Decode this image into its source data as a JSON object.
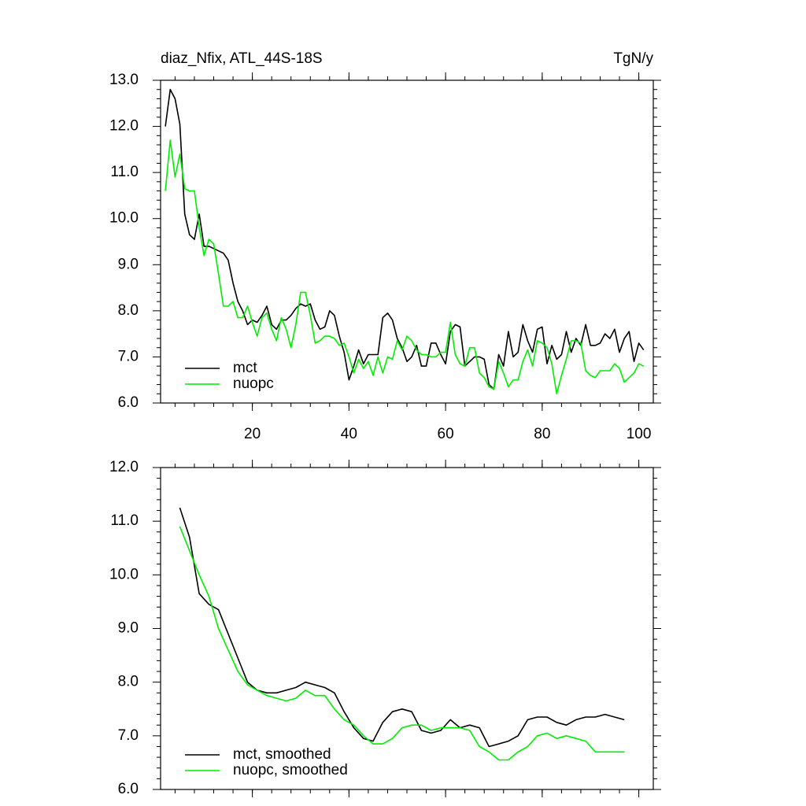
{
  "chart_data": [
    {
      "type": "line",
      "title": "diaz_Nfix, ATL_44S-18S",
      "title_right": "TgN/y",
      "x": [
        2,
        3,
        4,
        5,
        6,
        7,
        8,
        9,
        10,
        11,
        12,
        13,
        14,
        15,
        16,
        17,
        18,
        19,
        20,
        21,
        22,
        23,
        24,
        25,
        26,
        27,
        28,
        29,
        30,
        31,
        32,
        33,
        34,
        35,
        36,
        37,
        38,
        39,
        40,
        41,
        42,
        43,
        44,
        45,
        46,
        47,
        48,
        49,
        50,
        51,
        52,
        53,
        54,
        55,
        56,
        57,
        58,
        59,
        60,
        61,
        62,
        63,
        64,
        65,
        66,
        67,
        68,
        69,
        70,
        71,
        72,
        73,
        74,
        75,
        76,
        77,
        78,
        79,
        80,
        81,
        82,
        83,
        84,
        85,
        86,
        87,
        88,
        89,
        90,
        91,
        92,
        93,
        94,
        95,
        96,
        97,
        98,
        99,
        100,
        101
      ],
      "series": [
        {
          "name": "mct",
          "color": "#000000",
          "values": [
            12.0,
            12.8,
            12.6,
            12.05,
            10.1,
            9.65,
            9.55,
            10.1,
            9.4,
            9.4,
            9.35,
            9.3,
            9.25,
            9.1,
            8.6,
            8.2,
            8.0,
            7.7,
            7.8,
            7.75,
            7.9,
            8.1,
            7.7,
            7.6,
            7.8,
            7.8,
            7.9,
            8.05,
            8.15,
            8.1,
            8.15,
            7.8,
            7.6,
            7.65,
            8.0,
            7.9,
            7.45,
            7.1,
            6.5,
            6.8,
            7.15,
            6.85,
            7.05,
            7.05,
            7.05,
            7.85,
            7.95,
            7.8,
            7.4,
            7.2,
            6.9,
            7.0,
            7.25,
            6.8,
            6.8,
            7.3,
            7.3,
            7.05,
            6.85,
            7.55,
            7.7,
            7.65,
            6.8,
            6.9,
            7.0,
            7.0,
            6.95,
            6.4,
            6.3,
            7.05,
            6.8,
            7.55,
            7.0,
            7.1,
            7.7,
            7.35,
            7.1,
            7.6,
            7.65,
            6.85,
            7.25,
            6.95,
            7.05,
            7.55,
            7.1,
            7.4,
            7.25,
            7.7,
            7.25,
            7.25,
            7.3,
            7.5,
            7.4,
            7.6,
            7.1,
            7.4,
            7.55,
            6.9,
            7.3,
            7.15
          ]
        },
        {
          "name": "nuopc",
          "color": "#00ee00",
          "values": [
            10.6,
            11.7,
            10.9,
            11.4,
            10.65,
            10.6,
            10.6,
            9.8,
            9.2,
            9.55,
            9.45,
            8.8,
            8.1,
            8.1,
            8.2,
            7.85,
            7.85,
            8.1,
            7.75,
            7.45,
            7.85,
            7.95,
            7.6,
            7.35,
            7.85,
            7.6,
            7.2,
            7.7,
            8.4,
            8.4,
            7.9,
            7.3,
            7.35,
            7.45,
            7.45,
            7.4,
            7.25,
            7.3,
            7.0,
            6.65,
            6.95,
            6.75,
            6.9,
            6.6,
            7.0,
            6.65,
            7.0,
            6.95,
            7.35,
            7.15,
            7.45,
            7.35,
            7.15,
            7.05,
            7.05,
            7.0,
            7.0,
            7.1,
            7.1,
            7.75,
            7.05,
            6.85,
            6.8,
            7.2,
            7.2,
            6.65,
            6.55,
            6.35,
            6.3,
            6.9,
            6.65,
            6.35,
            6.5,
            6.5,
            6.9,
            7.15,
            6.8,
            7.35,
            7.3,
            7.2,
            6.85,
            6.2,
            6.6,
            6.95,
            7.35,
            7.35,
            7.3,
            6.7,
            6.6,
            6.55,
            6.7,
            6.7,
            6.7,
            6.85,
            6.75,
            6.45,
            6.55,
            6.65,
            6.85,
            6.8
          ]
        }
      ],
      "xlim": [
        1,
        103
      ],
      "xticks": [
        20,
        40,
        60,
        80,
        100
      ],
      "show_xtick_labels": true,
      "ylim": [
        6,
        13
      ],
      "yticks": [
        {
          "value": 6,
          "label": "6.0"
        },
        {
          "value": 7,
          "label": "7.0"
        },
        {
          "value": 8,
          "label": "8.0"
        },
        {
          "value": 9,
          "label": "9.0"
        },
        {
          "value": 10,
          "label": "10.0"
        },
        {
          "value": 11,
          "label": "11.0"
        },
        {
          "value": 12,
          "label": "12.0"
        },
        {
          "value": 13,
          "label": "13.0"
        }
      ],
      "legend": "lower left"
    },
    {
      "type": "line",
      "x": [
        5,
        7,
        9,
        11,
        13,
        15,
        17,
        19,
        21,
        23,
        25,
        27,
        29,
        31,
        33,
        35,
        37,
        39,
        41,
        43,
        45,
        47,
        49,
        51,
        53,
        55,
        57,
        59,
        61,
        63,
        65,
        67,
        69,
        71,
        73,
        75,
        77,
        79,
        81,
        83,
        85,
        87,
        89,
        91,
        93,
        95,
        97
      ],
      "series": [
        {
          "name": "mct, smoothed",
          "color": "#000000",
          "values": [
            11.25,
            10.7,
            9.65,
            9.45,
            9.35,
            8.9,
            8.45,
            8.0,
            7.85,
            7.8,
            7.8,
            7.85,
            7.9,
            8.0,
            7.95,
            7.9,
            7.8,
            7.45,
            7.15,
            6.95,
            6.9,
            7.25,
            7.45,
            7.5,
            7.45,
            7.1,
            7.05,
            7.1,
            7.3,
            7.15,
            7.2,
            7.15,
            6.8,
            6.85,
            6.9,
            7.0,
            7.3,
            7.35,
            7.35,
            7.25,
            7.2,
            7.3,
            7.35,
            7.35,
            7.4,
            7.35,
            7.3
          ]
        },
        {
          "name": "nuopc, smoothed",
          "color": "#00ee00",
          "values": [
            10.9,
            10.45,
            10.0,
            9.6,
            9.0,
            8.6,
            8.2,
            7.95,
            7.85,
            7.75,
            7.7,
            7.65,
            7.7,
            7.85,
            7.75,
            7.75,
            7.5,
            7.3,
            7.2,
            7.0,
            6.85,
            6.85,
            6.95,
            7.15,
            7.2,
            7.2,
            7.1,
            7.15,
            7.15,
            7.15,
            7.1,
            6.8,
            6.7,
            6.55,
            6.55,
            6.7,
            6.8,
            7.0,
            7.05,
            6.95,
            7.0,
            6.95,
            6.9,
            6.7,
            6.7,
            6.7,
            6.7
          ]
        }
      ],
      "xlim": [
        1,
        103
      ],
      "xticks": [
        20,
        40,
        60,
        80,
        100
      ],
      "show_xtick_labels": false,
      "ylim": [
        6,
        12
      ],
      "yticks": [
        {
          "value": 6,
          "label": "6.0"
        },
        {
          "value": 7,
          "label": "7.0"
        },
        {
          "value": 8,
          "label": "8.0"
        },
        {
          "value": 9,
          "label": "9.0"
        },
        {
          "value": 10,
          "label": "10.0"
        },
        {
          "value": 11,
          "label": "11.0"
        },
        {
          "value": 12,
          "label": "12.0"
        }
      ],
      "legend": "lower left"
    }
  ]
}
